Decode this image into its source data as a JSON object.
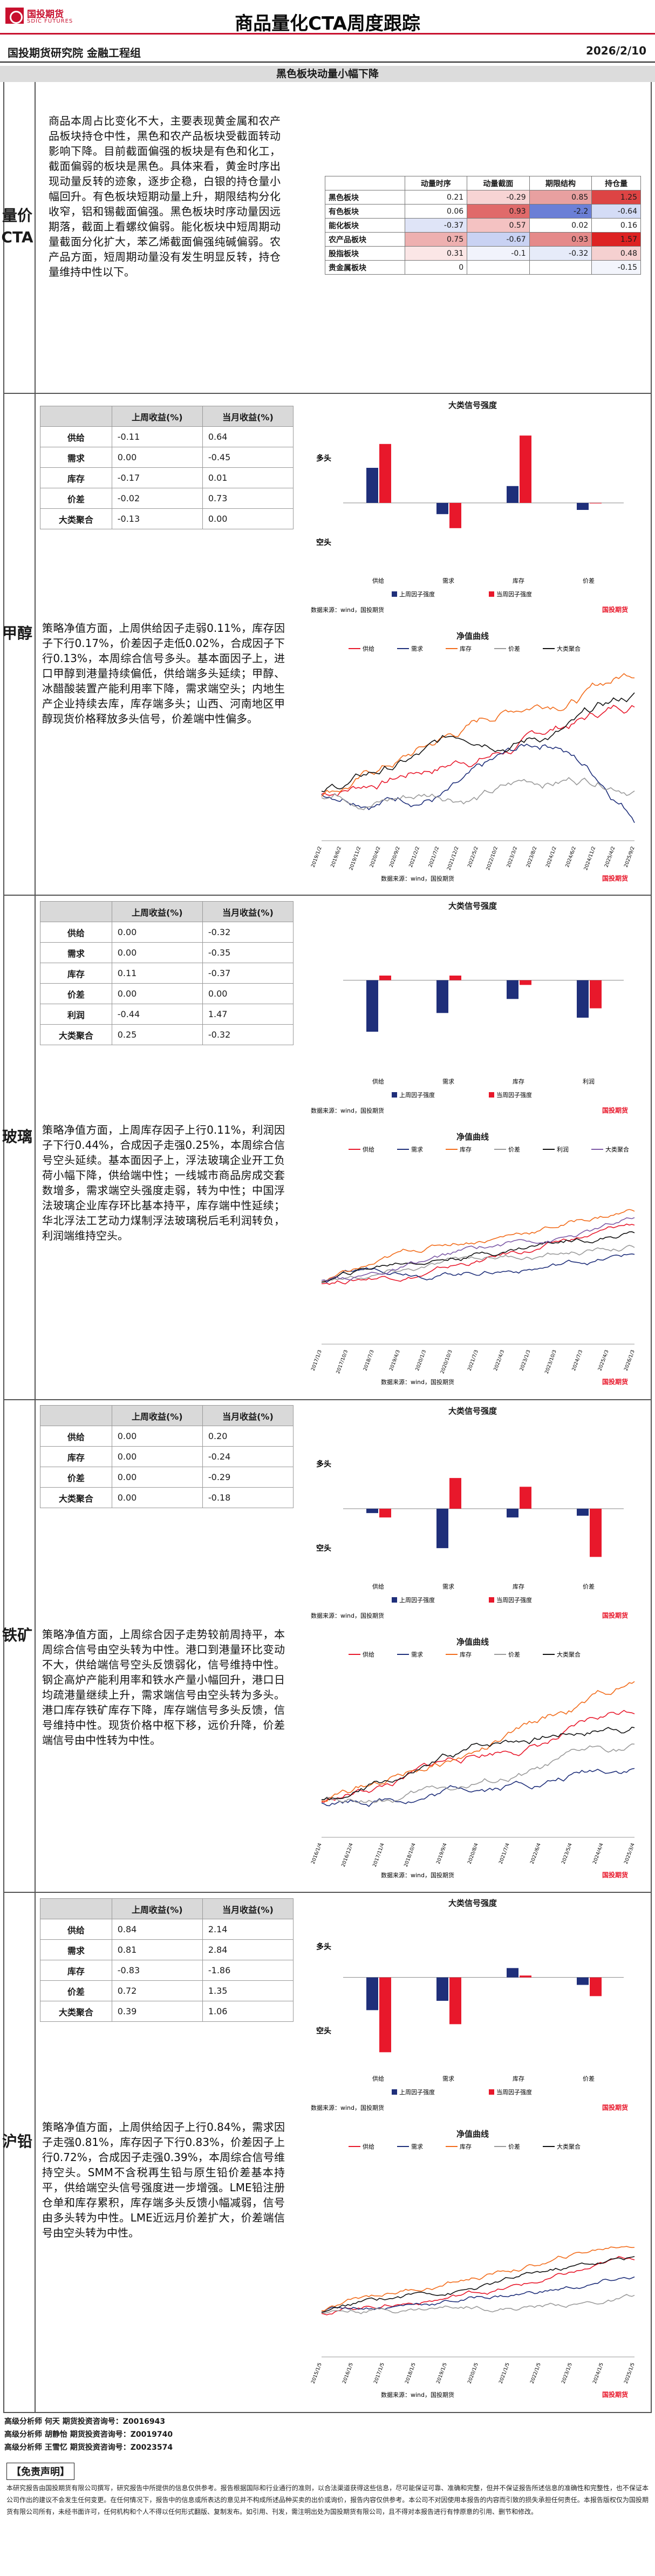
{
  "header": {
    "logo_text": "国投期货",
    "logo_sub": "SDIC FUTURES",
    "title": "商品量化CTA周度跟踪",
    "institute": "国投期货研究院 金融工程组",
    "date": "2026/2/10"
  },
  "section_title": "黑色板块动量小幅下降",
  "overview": {
    "label": "量价CTA",
    "paragraph": "商品本周占比变化不大，主要表现黄金属和农产品板块持仓中性，黑色和农产品板块受截面转动影响下降。目前截面偏强的板块是有色和化工，截面偏弱的板块是黑色。具体来看，黄金时序出现动量反转的迹象，逐步企稳，白银的持仓量小幅回升。有色板块短期动量上升，期限结构分化收窄，铝和锡截面偏强。黑色板块时序动量因远期落，截面上看螺纹偏弱。能化板块中短周期动量截面分化扩大，苯乙烯截面偏强纯碱偏弱。农产品方面，短周期动量没有发生明显反转，持仓量维持中性以下。",
    "heat": {
      "headers": [
        "",
        "动量时序",
        "动量截面",
        "期限结构",
        "持仓量"
      ],
      "rows": [
        {
          "label": "黑色板块",
          "values": [
            "0.21",
            "-0.29",
            "0.85",
            "1.25"
          ],
          "colors": [
            "#ffffff",
            "#f7d4d4",
            "#e8a0a0",
            "#d44"
          ]
        },
        {
          "label": "有色板块",
          "values": [
            "0.06",
            "0.93",
            "-2.2",
            "-0.64"
          ],
          "colors": [
            "#ffffff",
            "#e06a6a",
            "#6b7fd6",
            "#d4dcf6"
          ]
        },
        {
          "label": "能化板块",
          "values": [
            "-0.37",
            "0.57",
            "0.02",
            "0.16"
          ],
          "colors": [
            "#dfe4f7",
            "#f4c2c2",
            "#ffffff",
            "#ffffff"
          ]
        },
        {
          "label": "农产品板块",
          "values": [
            "0.75",
            "-0.67",
            "0.93",
            "1.57"
          ],
          "colors": [
            "#eeb0b0",
            "#c9d2f3",
            "#e58a8a",
            "#d22"
          ]
        },
        {
          "label": "股指板块",
          "values": [
            "0.31",
            "-0.1",
            "-0.32",
            "0.48"
          ],
          "colors": [
            "#fbe6e6",
            "#f1f3fc",
            "#e6ebf9",
            "#f5d0d0"
          ]
        },
        {
          "label": "贵金属板块",
          "values": [
            "0",
            "",
            "",
            "-0.15"
          ],
          "colors": [
            "#ffffff",
            "#ffffff",
            "#ffffff",
            "#f3f5fc"
          ]
        }
      ]
    }
  },
  "sections": [
    {
      "id": "methanol",
      "label": "甲醇",
      "table": {
        "headers": [
          "",
          "上周收益(%)",
          "当月收益(%)"
        ],
        "rows": [
          [
            "供给",
            "-0.11",
            "0.64"
          ],
          [
            "需求",
            "0.00",
            "-0.45"
          ],
          [
            "库存",
            "-0.17",
            "0.01"
          ],
          [
            "价差",
            "-0.02",
            "0.73"
          ],
          [
            "大类聚合",
            "-0.13",
            "0.00"
          ]
        ]
      },
      "paragraph": "策略净值方面，上周供给因子走弱0.11%，库存因子下行0.17%，价差因子走低0.02%，合成因子下行0.13%，本周综合信号多头。基本面因子上，进口甲醇到港量持续偏低，供给端多头延续；甲醇、冰醋酸装置产能利用率下降，需求端空头；内地生产企业持续去库，库存端多头；山西、河南地区甲醇现货价格释放多头信号，价差端中性偏多。",
      "bar_chart": {
        "title": "大类信号强度",
        "up_label": "多头",
        "down_label": "空头",
        "categories": [
          "供给",
          "需求",
          "库存",
          "价差"
        ],
        "series": [
          {
            "name": "上周因子强度",
            "values": [
              0.25,
              -0.08,
              0.12,
              -0.05
            ]
          },
          {
            "name": "当周因子强度",
            "values": [
              0.42,
              -0.18,
              0.48,
              0.0
            ]
          }
        ],
        "ylim": [
          -0.5,
          0.5
        ],
        "source": "数据来源：wind，国投期货"
      },
      "nav_chart": {
        "title": "净值曲线",
        "series_names": [
          "供给",
          "需求",
          "库存",
          "价差",
          "大类聚合"
        ],
        "dates": [
          "2019/1/2",
          "2019/6/2",
          "2019/11/2",
          "2020/4/2",
          "2020/9/2",
          "2021/2/2",
          "2021/7/2",
          "2021/12/2",
          "2022/5/2",
          "2022/10/2",
          "2023/3/2",
          "2023/8/2",
          "2024/1/2",
          "2024/6/2",
          "2024/11/2",
          "2025/4/2",
          "2025/9/2"
        ],
        "ylim": [
          0.8,
          1.6
        ],
        "source": "数据来源：wind，国投期货"
      }
    },
    {
      "id": "glass",
      "label": "玻璃",
      "table": {
        "headers": [
          "",
          "上周收益(%)",
          "当月收益(%)"
        ],
        "rows": [
          [
            "供给",
            "0.00",
            "-0.32"
          ],
          [
            "需求",
            "0.00",
            "-0.35"
          ],
          [
            "库存",
            "0.11",
            "-0.37"
          ],
          [
            "价差",
            "0.00",
            "0.00"
          ],
          [
            "利润",
            "-0.44",
            "1.47"
          ],
          [
            "大类聚合",
            "0.25",
            "-0.32"
          ]
        ]
      },
      "paragraph": "策略净值方面，上周库存因子上行0.11%，利润因子下行0.44%，合成因子走强0.25%，本周综合信号空头延续。基本面因子上，浮法玻璃企业开工负荷小幅下降，供给端中性；一线城市商品房成交套数增多，需求端空头强度走弱，转为中性；中国浮法玻璃企业库存环比基本持平，库存端中性延续；华北浮法工艺动力煤制浮法玻璃税后毛利润转负，利润端维持空头。",
      "bar_chart": {
        "title": "大类信号强度",
        "up_label": "",
        "down_label": "",
        "categories": [
          "供给",
          "需求",
          "库存",
          "利润"
        ],
        "series": [
          {
            "name": "上周因子强度",
            "values": [
              -0.55,
              -0.35,
              -0.2,
              -0.4
            ]
          },
          {
            "name": "当周因子强度",
            "values": [
              0.05,
              0.05,
              -0.05,
              -0.3
            ]
          }
        ],
        "ylim": [
          -1,
          0.5
        ],
        "source": "数据来源：wind，国投期货"
      },
      "nav_chart": {
        "title": "净值曲线",
        "series_names": [
          "供给",
          "需求",
          "库存",
          "价差",
          "利润",
          "大类聚合"
        ],
        "dates": [
          "2017/1/3",
          "2017/10/3",
          "2018/7/3",
          "2019/4/3",
          "2020/1/3",
          "2020/10/3",
          "2021/7/3",
          "2022/4/3",
          "2023/1/3",
          "2023/10/3",
          "2024/7/3",
          "2025/4/3",
          "2026/1/3"
        ],
        "ylim": [
          0.5,
          2.0
        ],
        "source": "数据来源：wind，国投期货"
      }
    },
    {
      "id": "iron-ore",
      "label": "铁矿",
      "table": {
        "headers": [
          "",
          "上周收益(%)",
          "当月收益(%)"
        ],
        "rows": [
          [
            "供给",
            "0.00",
            "0.20"
          ],
          [
            "库存",
            "0.00",
            "-0.24"
          ],
          [
            "价差",
            "0.00",
            "-0.29"
          ],
          [
            "大类聚合",
            "0.00",
            "-0.18"
          ]
        ]
      },
      "paragraph": "策略净值方面，上周综合因子走势较前周持平，本周综合信号由空头转为中性。港口到港量环比变动不大，供给端信号空头反馈弱化，信号维持中性。钢企高炉产能利用率和铁水产量小幅回升，港口日均疏港量继续上升，需求端信号由空头转为多头。港口库存铁矿库存下降，库存端信号多头反馈，信号维持中性。现货价格中枢下移，远价升降，价差端信号由中性转为中性。",
      "bar_chart": {
        "title": "大类信号强度",
        "up_label": "多头",
        "down_label": "空头",
        "categories": [
          "供给",
          "需求",
          "库存",
          "价差"
        ],
        "series": [
          {
            "name": "上周因子强度",
            "values": [
              -0.05,
              -0.45,
              -0.1,
              -0.08
            ]
          },
          {
            "name": "当周因子强度",
            "values": [
              -0.1,
              0.35,
              0.25,
              -0.55
            ]
          }
        ],
        "ylim": [
          -0.8,
          0.8
        ],
        "source": "数据来源：wind，国投期货"
      },
      "nav_chart": {
        "title": "净值曲线",
        "series_names": [
          "供给",
          "需求",
          "库存",
          "价差",
          "大类聚合"
        ],
        "dates": [
          "2016/1/4",
          "2016/12/4",
          "2017/11/4",
          "2018/10/4",
          "2019/9/4",
          "2020/8/4",
          "2021/7/4",
          "2022/6/4",
          "2023/5/4",
          "2024/4/4",
          "2025/3/4"
        ],
        "ylim": [
          0.8,
          1.8
        ],
        "source": "数据来源：wind，国投期货"
      }
    },
    {
      "id": "lead",
      "label": "沪铅",
      "table": {
        "headers": [
          "",
          "上周收益(%)",
          "当月收益(%)"
        ],
        "rows": [
          [
            "供给",
            "0.84",
            "2.14"
          ],
          [
            "需求",
            "0.81",
            "2.84"
          ],
          [
            "库存",
            "-0.83",
            "-1.86"
          ],
          [
            "价差",
            "0.72",
            "1.35"
          ],
          [
            "大类聚合",
            "0.39",
            "1.06"
          ]
        ]
      },
      "paragraph": "策略净值方面，上周供给因子上行0.84%，需求因子走强0.81%，库存因子下行0.83%，价差因子上行0.72%，合成因子走强0.39%，本周综合信号维持空头。SMM不含税再生铅与原生铅价差基本持平，供给端空头信号强度进一步增强。LME铅注册仓单和库存累积，库存端多头反馈小幅减弱，信号由多头转为中性。LME近远月价差扩大，价差端信号由空头转为中性。",
      "bar_chart": {
        "title": "大类信号强度",
        "up_label": "多头",
        "down_label": "空头",
        "categories": [
          "供给",
          "需求",
          "库存",
          "价差"
        ],
        "series": [
          {
            "name": "上周因子强度",
            "values": [
              -0.35,
              -0.25,
              0.1,
              -0.08
            ]
          },
          {
            "name": "当周因子强度",
            "values": [
              -0.8,
              -0.5,
              0.02,
              -0.2
            ]
          }
        ],
        "ylim": [
          -1,
          0.5
        ],
        "source": "数据来源：wind，国投期货"
      },
      "nav_chart": {
        "title": "净值曲线",
        "series_names": [
          "供给",
          "需求",
          "库存",
          "价差",
          "大类聚合"
        ],
        "dates": [
          "2015/1/5",
          "2016/1/5",
          "2017/1/5",
          "2018/1/5",
          "2019/1/5",
          "2020/1/5",
          "2021/1/5",
          "2022/1/5",
          "2023/1/5",
          "2024/1/5",
          "2025/1/5"
        ],
        "ylim": [
          0.6,
          2.4
        ],
        "source": "数据来源：wind，国投期货"
      }
    }
  ],
  "analysts": [
    "高级分析师 何天   期货投资咨询号：Z0016943",
    "高级分析师 胡静怡  期货投资咨询号：Z0019740",
    "高级分析师 王雪忆  期货投资咨询号：Z0023574"
  ],
  "disclaimer_title": "【免责声明】",
  "disclaimer": "本研究报告由国投期货有限公司撰写，研究报告中所提供的信息仅供参考。报告根据国际和行业通行的准则，以合法渠道获得这些信息，尽可能保证可靠、准确和完整，但并不保证报告所述信息的准确性和完整性，也不保证本公司作出的建议不会发生任何变更。在任何情况下，报告中的信息或所表达的意见并不构成所述品种买卖的出价或询价，报告内容仅供参考。本公司不对因使用本报告的内容而引致的损失承担任何责任。本报告版权仅为国投期货有限公司所有，未经书面许可，任何机构和个人不得以任何形式翻版、复制发布。如引用、刊发，需注明出处为国投期货有限公司，且不得对本报告进行有悖原意的引用、删节和修改。",
  "brand_mini": "国投期货",
  "colors": {
    "red": "#e8182b",
    "navy": "#1f2f7a",
    "orange": "#f26c1b",
    "grey": "#9a9a9a",
    "black": "#111111",
    "purple": "#7d5aa6"
  }
}
